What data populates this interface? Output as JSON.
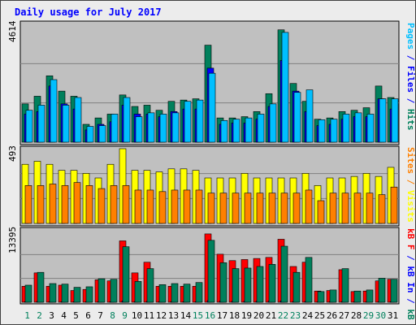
{
  "chart_data": [
    {
      "type": "bar",
      "panel": "top",
      "title": "Daily usage for July 2017",
      "categories": [
        "1",
        "2",
        "3",
        "4",
        "5",
        "6",
        "7",
        "8",
        "9",
        "10",
        "11",
        "12",
        "13",
        "14",
        "15",
        "16",
        "17",
        "18",
        "19",
        "20",
        "21",
        "22",
        "23",
        "24",
        "25",
        "26",
        "27",
        "28",
        "29",
        "30",
        "31"
      ],
      "weekend_days": [
        "1",
        "2",
        "8",
        "9",
        "15",
        "16",
        "22",
        "23",
        "29",
        "30"
      ],
      "max_label": "4614",
      "ylim": [
        0,
        4614
      ],
      "series": [
        {
          "name": "Hits",
          "color": "#00805c",
          "values": [
            1500,
            1800,
            2600,
            2000,
            1800,
            700,
            950,
            1100,
            1850,
            1400,
            1450,
            1250,
            1600,
            1650,
            1700,
            3800,
            950,
            950,
            1000,
            1200,
            1900,
            4400,
            2300,
            1600,
            900,
            950,
            1200,
            1250,
            1350,
            2200,
            1750
          ]
        },
        {
          "name": "Files",
          "color": "#0000ff",
          "values": [
            1100,
            1200,
            2200,
            1500,
            1300,
            480,
            700,
            800,
            1450,
            1100,
            1100,
            1000,
            1200,
            1300,
            1300,
            2900,
            700,
            750,
            750,
            900,
            1400,
            3200,
            2000,
            1200,
            650,
            700,
            900,
            1000,
            1000,
            1700,
            1300
          ]
        },
        {
          "name": "Pages",
          "color": "#00bfff",
          "values": [
            1250,
            1450,
            2450,
            1450,
            1750,
            620,
            650,
            1100,
            1750,
            1000,
            1150,
            1100,
            1150,
            1600,
            1650,
            2700,
            850,
            900,
            950,
            1100,
            1500,
            4300,
            1950,
            2050,
            880,
            900,
            1100,
            1150,
            1100,
            1700,
            1700
          ]
        }
      ]
    },
    {
      "type": "bar",
      "panel": "middle",
      "max_label": "493",
      "ylim": [
        0,
        493
      ],
      "series": [
        {
          "name": "Visits",
          "color": "#ffff00",
          "values": [
            390,
            410,
            390,
            350,
            350,
            330,
            300,
            390,
            493,
            350,
            350,
            340,
            360,
            360,
            350,
            300,
            300,
            300,
            330,
            300,
            300,
            300,
            300,
            330,
            250,
            300,
            300,
            310,
            330,
            310,
            370
          ]
        },
        {
          "name": "Sites",
          "color": "#ff8000",
          "values": [
            250,
            250,
            260,
            250,
            270,
            250,
            230,
            250,
            250,
            220,
            220,
            210,
            220,
            220,
            220,
            200,
            200,
            200,
            200,
            200,
            200,
            200,
            200,
            220,
            150,
            200,
            200,
            200,
            200,
            190,
            240
          ]
        }
      ]
    },
    {
      "type": "bar",
      "panel": "bottom",
      "max_label": "13395",
      "ylim": [
        0,
        13395
      ],
      "series": [
        {
          "name": "KB F",
          "color": "#ff0000",
          "values": [
            3000,
            5500,
            3000,
            3200,
            2200,
            2400,
            4200,
            4000,
            11500,
            5500,
            7500,
            3000,
            3000,
            3000,
            3000,
            12800,
            9000,
            7800,
            8000,
            8200,
            8400,
            11800,
            6700,
            7500,
            2100,
            2200,
            6100,
            2000,
            2100,
            4000,
            4300
          ]
        },
        {
          "name": "KB In",
          "color": "#0000ff",
          "values": [
            100,
            150,
            120,
            120,
            100,
            100,
            100,
            120,
            250,
            130,
            160,
            100,
            110,
            110,
            110,
            300,
            200,
            180,
            190,
            190,
            200,
            260,
            140,
            160,
            80,
            90,
            120,
            80,
            80,
            100,
            110
          ]
        },
        {
          "name": "KB Out",
          "color": "#00805c",
          "values": [
            3200,
            5600,
            3500,
            3400,
            2800,
            2900,
            4400,
            4300,
            10400,
            3900,
            6300,
            3300,
            3500,
            3400,
            3700,
            11600,
            7400,
            6300,
            6400,
            6700,
            7100,
            10500,
            5600,
            8400,
            2000,
            2300,
            6300,
            2100,
            2300,
            4500,
            4300
          ]
        }
      ]
    }
  ],
  "right_legend_top": [
    {
      "text": "Pages",
      "color": "#00bfff"
    },
    {
      "text": " / ",
      "color": "#0000ff"
    },
    {
      "text": "Files",
      "color": "#0000ff"
    },
    {
      "text": " / ",
      "color": "#0000ff"
    },
    {
      "text": "Hits",
      "color": "#00805c"
    }
  ],
  "right_legend_mid": [
    {
      "text": "Sites",
      "color": "#ff8000"
    },
    {
      "text": " / ",
      "color": "#ff8000"
    },
    {
      "text": "Visits",
      "color": "#ffff00"
    }
  ],
  "right_legend_bot": [
    {
      "text": "kB F",
      "color": "#ff0000"
    },
    {
      "text": " / ",
      "color": "#0000ff"
    },
    {
      "text": "kB In",
      "color": "#0000ff"
    },
    {
      "text": " / ",
      "color": "#0000ff"
    },
    {
      "text": "kB Out",
      "color": "#00805c"
    }
  ],
  "colors": {
    "background": "#ececec",
    "plot": "#c0c0c0",
    "title": "#0000ff",
    "weekday_label": "#000000",
    "weekend_label": "#00805c",
    "gridline": "#808080"
  }
}
